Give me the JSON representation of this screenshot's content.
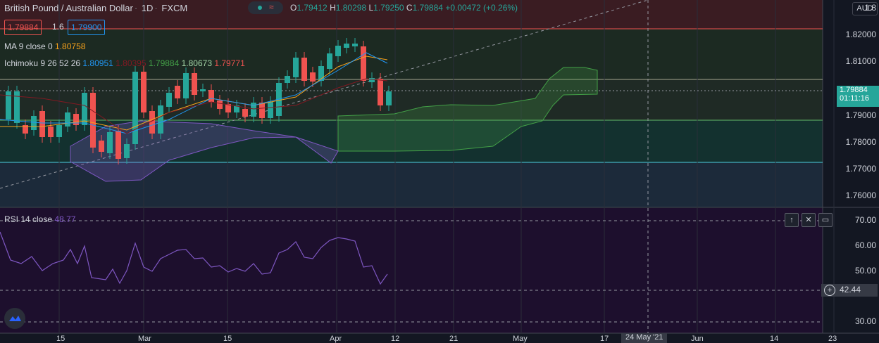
{
  "header": {
    "symbol": "British Pound / Australian Dollar",
    "interval": "1D",
    "exchange": "FXCM",
    "open_label": "O",
    "open": "1.79412",
    "high_label": "H",
    "high": "1.80298",
    "low_label": "L",
    "low": "1.79250",
    "close_label": "C",
    "close": "1.79884",
    "change": "+0.00472 (+0.26%)",
    "currency": "AUD"
  },
  "trade": {
    "sell_price": "1.79884",
    "spread": "1.6",
    "buy_price": "1.79900"
  },
  "legends": {
    "ma_label": "MA 9 close 0",
    "ma_value": "1.80758",
    "ichimoku_label": "Ichimoku 9 26 52 26",
    "ichimoku_values": [
      "1.80951",
      "1.80395",
      "1.79884",
      "1.80673",
      "1.79771"
    ],
    "rsi_label": "RSI 14 close",
    "rsi_value": "48.77"
  },
  "price_axis": [
    "1.82000",
    "1.81000",
    "1.79000",
    "1.78000",
    "1.77000",
    "1.76000"
  ],
  "price_axis_top": "1.8",
  "current_price_tag": {
    "price": "1.79884",
    "countdown": "01:11:16"
  },
  "rsi_axis": [
    "70.00",
    "60.00",
    "50.00",
    "30.00"
  ],
  "rsi_crosshair_value": "42.44",
  "x_axis": [
    "15",
    "Mar",
    "15",
    "Apr",
    "12",
    "21",
    "May",
    "17",
    "Jun",
    "14",
    "23"
  ],
  "x_crosshair_label": "24 May '21",
  "colors": {
    "up": "#26a69a",
    "down": "#ef5350",
    "ma": "#f7a21b",
    "tenkan": "#2196f3",
    "kijun": "#801922",
    "rsi": "#7e57c2",
    "background": "#131722"
  },
  "rsi_panel_buttons": [
    "arrow-up-icon",
    "close-icon",
    "restore-icon"
  ]
}
